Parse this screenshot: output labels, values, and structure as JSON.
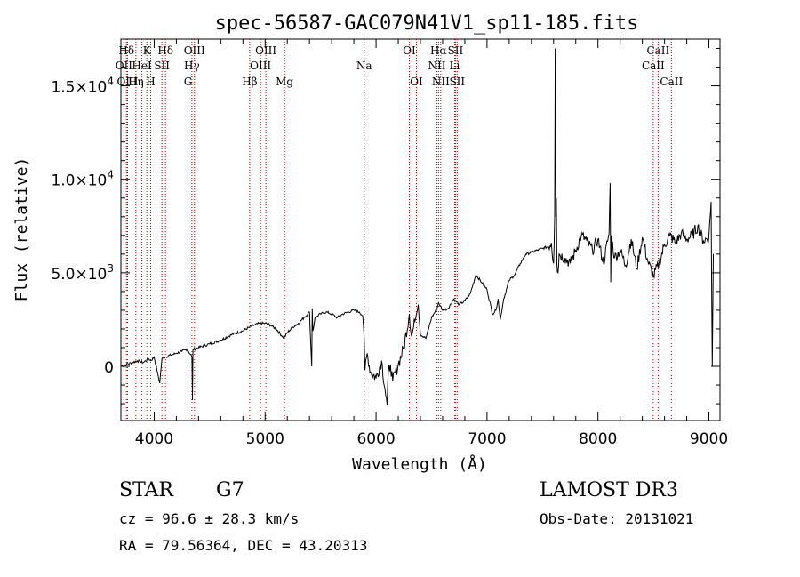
{
  "chart_data": {
    "type": "line",
    "title": "spec-56587-GAC079N41V1_sp11-185.fits",
    "xlabel": "Wavelength (Å)",
    "ylabel": "Flux (relative)",
    "xlim": [
      3700,
      9100
    ],
    "ylim": [
      -2900,
      17500
    ],
    "x_ticks": [
      4000,
      5000,
      6000,
      7000,
      8000,
      9000
    ],
    "y_ticks": [
      {
        "value": 0,
        "base": "0",
        "exp": ""
      },
      {
        "value": 5000,
        "base": "5.0×10",
        "exp": "3"
      },
      {
        "value": 10000,
        "base": "1.0×10",
        "exp": "4"
      },
      {
        "value": 15000,
        "base": "1.5×10",
        "exp": "4"
      }
    ],
    "series": [
      {
        "name": "spectrum",
        "x": [
          3700,
          3750,
          3800,
          3850,
          3900,
          3950,
          3970,
          4000,
          4050,
          4070,
          4100,
          4150,
          4200,
          4250,
          4300,
          4340,
          4345,
          4350,
          4400,
          4450,
          4500,
          4600,
          4700,
          4800,
          4860,
          4900,
          4950,
          5000,
          5050,
          5100,
          5170,
          5200,
          5250,
          5300,
          5350,
          5400,
          5420,
          5425,
          5430,
          5440,
          5450,
          5500,
          5550,
          5600,
          5650,
          5700,
          5750,
          5800,
          5850,
          5880,
          5893,
          5900,
          5920,
          5950,
          6000,
          6050,
          6080,
          6100,
          6110,
          6130,
          6150,
          6200,
          6250,
          6300,
          6320,
          6350,
          6380,
          6400,
          6450,
          6500,
          6550,
          6563,
          6600,
          6650,
          6700,
          6750,
          6800,
          6850,
          6900,
          6950,
          7000,
          7050,
          7080,
          7100,
          7120,
          7150,
          7200,
          7250,
          7300,
          7350,
          7400,
          7450,
          7500,
          7550,
          7580,
          7600,
          7610,
          7615,
          7620,
          7625,
          7630,
          7640,
          7650,
          7700,
          7750,
          7800,
          7850,
          7900,
          7950,
          8000,
          8050,
          8100,
          8110,
          8115,
          8120,
          8150,
          8200,
          8250,
          8300,
          8350,
          8400,
          8450,
          8500,
          8550,
          8600,
          8650,
          8700,
          8750,
          8800,
          8850,
          8900,
          8950,
          9000,
          9020,
          9030,
          9040
        ],
        "y": [
          0,
          100,
          200,
          300,
          200,
          400,
          300,
          500,
          -900,
          400,
          500,
          600,
          700,
          800,
          900,
          500,
          -1800,
          900,
          1000,
          1100,
          1200,
          1400,
          1700,
          1900,
          2100,
          2200,
          2300,
          2300,
          2200,
          2000,
          1500,
          1800,
          2100,
          2300,
          2600,
          2900,
          0,
          3100,
          1900,
          2200,
          2600,
          2800,
          2900,
          2800,
          2600,
          2800,
          2900,
          3000,
          2900,
          2700,
          1500,
          -200,
          700,
          -300,
          -600,
          300,
          -1200,
          -2100,
          -300,
          100,
          -800,
          100,
          1000,
          2800,
          1600,
          2400,
          3300,
          1700,
          1500,
          2600,
          3100,
          3400,
          3000,
          3100,
          3600,
          3300,
          3500,
          3900,
          4900,
          4500,
          4100,
          2800,
          3000,
          3600,
          2500,
          3600,
          4600,
          4900,
          5500,
          6000,
          6100,
          6200,
          6300,
          6400,
          6600,
          5500,
          8000,
          17000,
          8000,
          9000,
          5500,
          5000,
          6000,
          5800,
          5500,
          6200,
          7000,
          6700,
          6200,
          6800,
          5500,
          7100,
          9800,
          4500,
          7000,
          5800,
          6200,
          5400,
          6800,
          5200,
          6900,
          5600,
          4800,
          5500,
          6500,
          7000,
          6600,
          7100,
          6800,
          7000,
          7500,
          6700,
          6900,
          8800,
          0,
          6000
        ],
        "color": "#000000"
      }
    ],
    "lines": [
      {
        "label": "Hδ",
        "x": 3750,
        "row": 0
      },
      {
        "label": "OII",
        "x": 3727,
        "row": 1
      },
      {
        "label": "OIII",
        "x": 3760,
        "row": 2
      },
      {
        "label": "K",
        "x": 3934,
        "row": 0
      },
      {
        "label": "HeI",
        "x": 3889,
        "row": 1
      },
      {
        "label": "Hη",
        "x": 3835,
        "row": 2
      },
      {
        "label": "SII",
        "x": 4070,
        "row": 1
      },
      {
        "label": "H",
        "x": 3968,
        "row": 2
      },
      {
        "label": "Hδ",
        "x": 4102,
        "row": 0
      },
      {
        "label": "OIII",
        "x": 4363,
        "row": 0
      },
      {
        "label": "Hγ",
        "x": 4340,
        "row": 1
      },
      {
        "label": "G",
        "x": 4305,
        "row": 2
      },
      {
        "label": "Hβ",
        "x": 4861,
        "row": 2
      },
      {
        "label": "OIII",
        "x": 5007,
        "row": 0
      },
      {
        "label": "OIII",
        "x": 4959,
        "row": 1
      },
      {
        "label": "Mg",
        "x": 5175,
        "row": 2
      },
      {
        "label": "Na",
        "x": 5893,
        "row": 1
      },
      {
        "label": "OI",
        "x": 6300,
        "row": 0
      },
      {
        "label": "OI",
        "x": 6364,
        "row": 2
      },
      {
        "label": "Hα",
        "x": 6563,
        "row": 0
      },
      {
        "label": "SII",
        "x": 6716,
        "row": 0
      },
      {
        "label": "NII",
        "x": 6548,
        "row": 1
      },
      {
        "label": "Li",
        "x": 6708,
        "row": 1
      },
      {
        "label": "NII",
        "x": 6583,
        "row": 2
      },
      {
        "label": "SII",
        "x": 6731,
        "row": 2
      },
      {
        "label": "CaII",
        "x": 8542,
        "row": 0
      },
      {
        "label": "CaII",
        "x": 8498,
        "row": 1
      },
      {
        "label": "CaII",
        "x": 8662,
        "row": 2
      }
    ]
  },
  "info": {
    "class": "STAR",
    "subclass": "G7",
    "survey": "LAMOST DR3",
    "cz": "cz = 96.6 ± 28.3 km/s",
    "obs_date": "Obs-Date: 20131021",
    "radec": "RA =  79.56364, DEC =  43.20313"
  },
  "colors": {
    "line_marker": "#b00000",
    "spectrum": "#000000"
  }
}
